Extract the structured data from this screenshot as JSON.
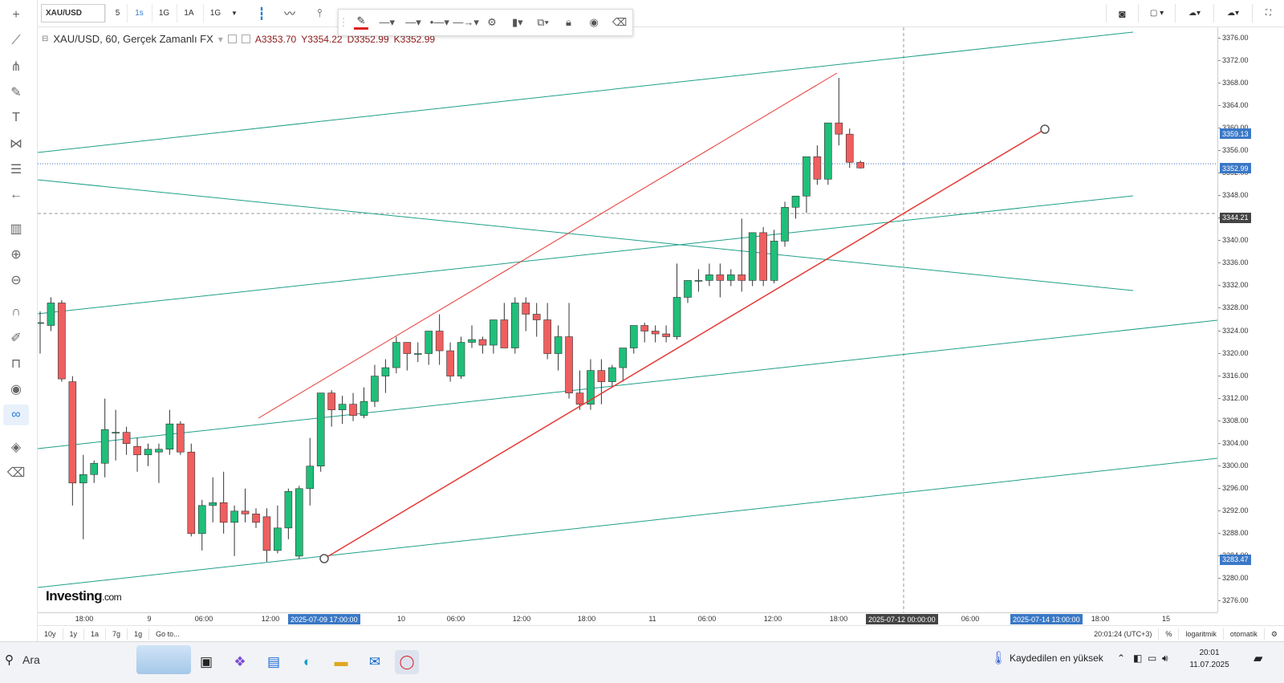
{
  "toolbar": {
    "symbol": "XAU/USD",
    "intervals": [
      "5",
      "1s",
      "1G",
      "1A",
      "1G"
    ],
    "active_interval": "1s"
  },
  "legend": {
    "title": "XAU/USD, 60, Gerçek Zamanlı FX",
    "open": "A3353.70",
    "high": "Y3354.22",
    "low": "D3352.99",
    "close": "K3352.99"
  },
  "logo": {
    "main": "Investing",
    "suffix": ".com"
  },
  "yaxis": {
    "ticks": [
      "3376.00",
      "3372.00",
      "3368.00",
      "3364.00",
      "3360.00",
      "3356.00",
      "3352.00",
      "3348.00",
      "3344.00",
      "3340.00",
      "3336.00",
      "3332.00",
      "3328.00",
      "3324.00",
      "3320.00",
      "3316.00",
      "3312.00",
      "3308.00",
      "3304.00",
      "3300.00",
      "3296.00",
      "3292.00",
      "3288.00",
      "3284.00",
      "3280.00",
      "3276.00"
    ],
    "labels": [
      {
        "text": "3359.13",
        "price": 3359.13,
        "color": "#3a78c6"
      },
      {
        "text": "3352.99",
        "price": 3352.99,
        "color": "#3a78c6"
      },
      {
        "text": "3344.21",
        "price": 3344.21,
        "color": "#444444"
      },
      {
        "text": "3283.47",
        "price": 3283.47,
        "color": "#3a78c6"
      }
    ]
  },
  "xaxis": {
    "ticks": [
      "18:00",
      "9",
      "06:00",
      "12:00",
      "10",
      "06:00",
      "12:00",
      "18:00",
      "11",
      "06:00",
      "12:00",
      "18:00",
      "06:00",
      "18:00",
      "15"
    ],
    "labels": [
      {
        "text": "2025-07-09 17:00:00",
        "color": "#3a78c6"
      },
      {
        "text": "2025-07-12 00:00:00",
        "color": "#444444"
      },
      {
        "text": "2025-07-14 13:00:00",
        "color": "#3a78c6"
      }
    ]
  },
  "bottombar": {
    "ranges": [
      "10y",
      "1y",
      "1a",
      "7g",
      "1g"
    ],
    "goto": "Go to...",
    "time": "20:01:24 (UTC+3)",
    "percent": "%",
    "log": "logaritmik",
    "auto": "otomatik"
  },
  "taskbar": {
    "search": "Ara",
    "weather": "Kaydedilen en yüksek",
    "time": "20:01",
    "date": "11.07.2025"
  },
  "chart_data": {
    "type": "candlestick",
    "symbol": "XAU/USD",
    "interval": "60",
    "ylim": [
      3274,
      3378
    ],
    "up_color": "#1fbf7a",
    "down_color": "#ef5f5f",
    "candles": [
      [
        3325.5,
        3327.5,
        3320,
        3325.5
      ],
      [
        3325,
        3330,
        3324,
        3329
      ],
      [
        3329,
        3329.5,
        3315,
        3315.5
      ],
      [
        3315,
        3316,
        3293,
        3297
      ],
      [
        3297,
        3302,
        3287,
        3298.5
      ],
      [
        3298.5,
        3301,
        3297,
        3300.5
      ],
      [
        3300.5,
        3312,
        3298,
        3306.5
      ],
      [
        3306,
        3310,
        3301,
        3306
      ],
      [
        3306,
        3307,
        3302,
        3304
      ],
      [
        3303.5,
        3305,
        3299,
        3302
      ],
      [
        3302,
        3304,
        3300,
        3303
      ],
      [
        3302.5,
        3304,
        3297,
        3303
      ],
      [
        3303,
        3310,
        3302,
        3307.5
      ],
      [
        3307.5,
        3308,
        3302,
        3302.5
      ],
      [
        3302.5,
        3304,
        3287.5,
        3288
      ],
      [
        3288,
        3294,
        3285,
        3293
      ],
      [
        3293,
        3298,
        3290,
        3293.5
      ],
      [
        3293.5,
        3299,
        3288,
        3290
      ],
      [
        3290,
        3293,
        3284,
        3292
      ],
      [
        3292,
        3296,
        3290,
        3291.5
      ],
      [
        3291.5,
        3292.5,
        3289,
        3290
      ],
      [
        3291,
        3292.5,
        3283,
        3285
      ],
      [
        3285,
        3293,
        3284.5,
        3289
      ],
      [
        3289,
        3296,
        3287,
        3295.5
      ],
      [
        3284,
        3296.5,
        3283.5,
        3296
      ],
      [
        3296,
        3305,
        3293,
        3300
      ],
      [
        3300,
        3313,
        3299,
        3313
      ],
      [
        3313,
        3313.5,
        3307,
        3310
      ],
      [
        3310,
        3312.5,
        3307.5,
        3311
      ],
      [
        3311,
        3313,
        3308,
        3309
      ],
      [
        3309,
        3314,
        3308.5,
        3311.5
      ],
      [
        3311.5,
        3318,
        3310.5,
        3316
      ],
      [
        3316,
        3319,
        3313,
        3317.5
      ],
      [
        3317.5,
        3323,
        3316.5,
        3322
      ],
      [
        3322,
        3322,
        3317,
        3320
      ],
      [
        3320,
        3322,
        3318.5,
        3320
      ],
      [
        3320,
        3324,
        3318,
        3324
      ],
      [
        3324,
        3327,
        3318,
        3320.5
      ],
      [
        3320.5,
        3322,
        3315,
        3316
      ],
      [
        3316,
        3323,
        3315.5,
        3322
      ],
      [
        3322,
        3325,
        3321,
        3322.5
      ],
      [
        3322.5,
        3323,
        3320,
        3321.5
      ],
      [
        3321.5,
        3326,
        3320,
        3326
      ],
      [
        3326,
        3329,
        3322,
        3321
      ],
      [
        3321,
        3330,
        3320,
        3329
      ],
      [
        3329,
        3330,
        3324,
        3327
      ],
      [
        3327,
        3329,
        3323,
        3326
      ],
      [
        3326,
        3329,
        3319,
        3320
      ],
      [
        3320,
        3325,
        3317,
        3323
      ],
      [
        3323,
        3329,
        3312,
        3313
      ],
      [
        3313,
        3317,
        3310,
        3311
      ],
      [
        3311,
        3319,
        3310,
        3317
      ],
      [
        3317,
        3319,
        3311,
        3315
      ],
      [
        3315,
        3318,
        3314,
        3317.5
      ],
      [
        3317.5,
        3321,
        3315,
        3321
      ],
      [
        3321,
        3325,
        3320,
        3325
      ],
      [
        3325,
        3325.5,
        3322,
        3324
      ],
      [
        3324,
        3325,
        3322,
        3323.5
      ],
      [
        3323.5,
        3325,
        3322,
        3323
      ],
      [
        3323,
        3336,
        3322.5,
        3330
      ],
      [
        3330,
        3333,
        3329,
        3333
      ],
      [
        3333,
        3335,
        3331,
        3333
      ],
      [
        3333,
        3336,
        3332,
        3334
      ],
      [
        3334,
        3336,
        3330,
        3333
      ],
      [
        3333,
        3335,
        3332,
        3334
      ],
      [
        3334,
        3344,
        3331,
        3333
      ],
      [
        3333,
        3341,
        3332,
        3341.5
      ],
      [
        3341.5,
        3342.5,
        3332,
        3333
      ],
      [
        3333,
        3342,
        3332.5,
        3340
      ],
      [
        3340,
        3347,
        3339,
        3346
      ],
      [
        3346,
        3347,
        3344,
        3348
      ],
      [
        3348,
        3354,
        3345,
        3355
      ],
      [
        3355,
        3357,
        3350,
        3351
      ],
      [
        3351,
        3361,
        3350,
        3361
      ],
      [
        3361,
        3369,
        3357,
        3359
      ],
      [
        3359,
        3360,
        3353,
        3354
      ],
      [
        3354,
        3354.3,
        3352.9,
        3353
      ]
    ]
  }
}
